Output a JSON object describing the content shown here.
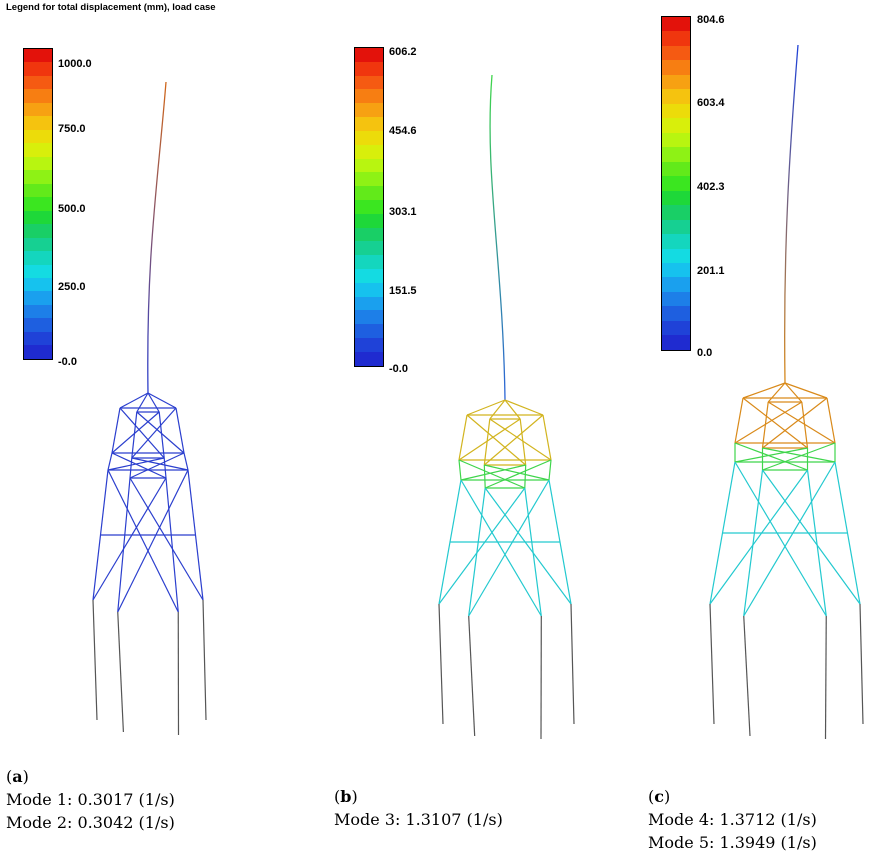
{
  "legend_title": "Legend for total displacement (mm), load case",
  "colorscale": [
    "#e3120b",
    "#f0360e",
    "#f55a12",
    "#f77e12",
    "#f7a112",
    "#f5c30f",
    "#ecdc0a",
    "#d8ef0b",
    "#b8f510",
    "#8ef215",
    "#62ea1a",
    "#3be620",
    "#1ed839",
    "#19cf66",
    "#16d092",
    "#14d6be",
    "#14dbe2",
    "#16c2ee",
    "#1aa0ee",
    "#1d7fe8",
    "#1e5fe0",
    "#1f42d8",
    "#1f2bd0"
  ],
  "panels": [
    {
      "id": "a",
      "legend_ticks": [
        "1000.0",
        "750.0",
        "500.0",
        "250.0",
        "-0.0"
      ],
      "caption_label": "a",
      "modes": [
        "Mode 1: 0.3017 (1/s)",
        "Mode 2: 0.3042 (1/s)"
      ]
    },
    {
      "id": "b",
      "legend_ticks": [
        "606.2",
        "454.6",
        "303.1",
        "151.5",
        "-0.0"
      ],
      "caption_label": "b",
      "modes": [
        "Mode 3: 1.3107 (1/s)"
      ]
    },
    {
      "id": "c",
      "legend_ticks": [
        "804.6",
        "603.4",
        "402.3",
        "201.1",
        "0.0"
      ],
      "caption_label": "c",
      "modes": [
        "Mode 4: 1.3712 (1/s)",
        "Mode 5: 1.3949 (1/s)"
      ]
    }
  ]
}
